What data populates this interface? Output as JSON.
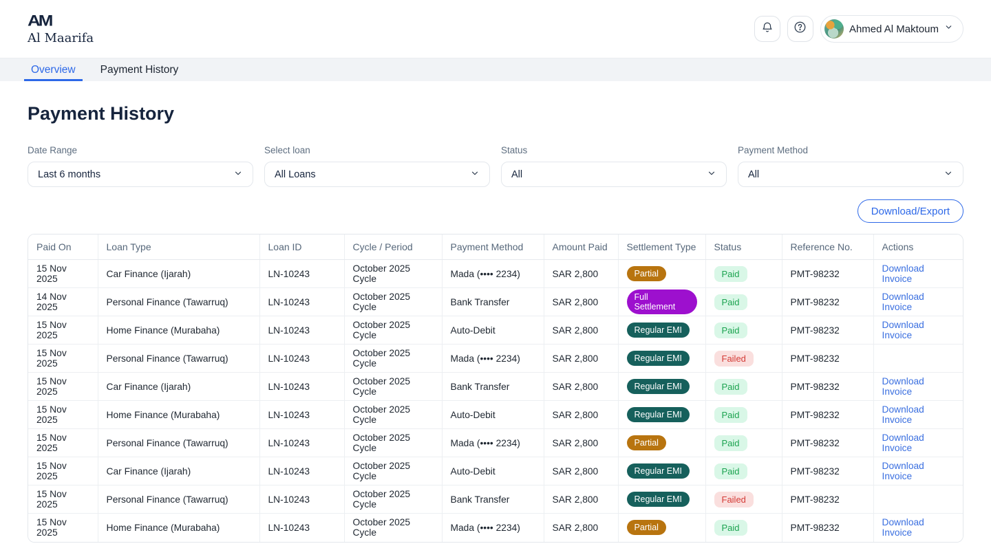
{
  "brand": {
    "monogram": "AM",
    "name": "Al Maarifa"
  },
  "header": {
    "user_name": "Ahmed Al Maktoum",
    "icons": {
      "notifications": "bell-icon",
      "help": "question-icon",
      "user_menu": "chevron-down-icon"
    }
  },
  "tabs": [
    {
      "label": "Overview",
      "active": true
    },
    {
      "label": "Payment History",
      "active": false
    }
  ],
  "page": {
    "title": "Payment History"
  },
  "filters": [
    {
      "label": "Date Range",
      "value": "Last 6 months"
    },
    {
      "label": "Select loan",
      "value": "All Loans"
    },
    {
      "label": "Status",
      "value": "All"
    },
    {
      "label": "Payment Method",
      "value": "All"
    }
  ],
  "export_button": "Download/Export",
  "table": {
    "columns": [
      "Paid On",
      "Loan Type",
      "Loan ID",
      "Cycle / Period",
      "Payment Method",
      "Amount Paid",
      "Settlement Type",
      "Status",
      "Reference No.",
      "Actions"
    ],
    "rows": [
      {
        "paid_on": "15 Nov 2025",
        "loan_type": "Car Finance (Ijarah)",
        "loan_id": "LN-10243",
        "cycle": "October 2025 Cycle",
        "method": "Mada (•••• 2234)",
        "amount": "SAR 2,800",
        "settlement": "Partial",
        "status": "Paid",
        "reference": "PMT-98232",
        "action": "Download Invoice"
      },
      {
        "paid_on": "14 Nov 2025",
        "loan_type": "Personal Finance (Tawarruq)",
        "loan_id": "LN-10243",
        "cycle": "October 2025 Cycle",
        "method": "Bank Transfer",
        "amount": "SAR 2,800",
        "settlement": "Full Settlement",
        "status": "Paid",
        "reference": "PMT-98232",
        "action": "Download Invoice"
      },
      {
        "paid_on": "15 Nov 2025",
        "loan_type": "Home Finance (Murabaha)",
        "loan_id": "LN-10243",
        "cycle": "October 2025 Cycle",
        "method": "Auto-Debit",
        "amount": "SAR 2,800",
        "settlement": "Regular EMI",
        "status": "Paid",
        "reference": "PMT-98232",
        "action": "Download Invoice"
      },
      {
        "paid_on": "15 Nov 2025",
        "loan_type": "Personal Finance (Tawarruq)",
        "loan_id": "LN-10243",
        "cycle": "October 2025 Cycle",
        "method": "Mada (•••• 2234)",
        "amount": "SAR 2,800",
        "settlement": "Regular EMI",
        "status": "Failed",
        "reference": "PMT-98232",
        "action": ""
      },
      {
        "paid_on": "15 Nov 2025",
        "loan_type": "Car Finance (Ijarah)",
        "loan_id": "LN-10243",
        "cycle": "October 2025 Cycle",
        "method": "Bank Transfer",
        "amount": "SAR 2,800",
        "settlement": "Regular EMI",
        "status": "Paid",
        "reference": "PMT-98232",
        "action": "Download Invoice"
      },
      {
        "paid_on": "15 Nov 2025",
        "loan_type": "Home Finance (Murabaha)",
        "loan_id": "LN-10243",
        "cycle": "October 2025 Cycle",
        "method": "Auto-Debit",
        "amount": "SAR 2,800",
        "settlement": "Regular EMI",
        "status": "Paid",
        "reference": "PMT-98232",
        "action": "Download Invoice"
      },
      {
        "paid_on": "15 Nov 2025",
        "loan_type": "Personal Finance (Tawarruq)",
        "loan_id": "LN-10243",
        "cycle": "October 2025 Cycle",
        "method": "Mada (•••• 2234)",
        "amount": "SAR 2,800",
        "settlement": "Partial",
        "status": "Paid",
        "reference": "PMT-98232",
        "action": "Download Invoice"
      },
      {
        "paid_on": "15 Nov 2025",
        "loan_type": "Car Finance (Ijarah)",
        "loan_id": "LN-10243",
        "cycle": "October 2025 Cycle",
        "method": "Auto-Debit",
        "amount": "SAR 2,800",
        "settlement": "Regular EMI",
        "status": "Paid",
        "reference": "PMT-98232",
        "action": "Download Invoice"
      },
      {
        "paid_on": "15 Nov 2025",
        "loan_type": "Personal Finance (Tawarruq)",
        "loan_id": "LN-10243",
        "cycle": "October 2025 Cycle",
        "method": "Bank Transfer",
        "amount": "SAR 2,800",
        "settlement": "Regular EMI",
        "status": "Failed",
        "reference": "PMT-98232",
        "action": ""
      },
      {
        "paid_on": "15 Nov 2025",
        "loan_type": "Home Finance (Murabaha)",
        "loan_id": "LN-10243",
        "cycle": "October 2025 Cycle",
        "method": "Mada (•••• 2234)",
        "amount": "SAR 2,800",
        "settlement": "Partial",
        "status": "Paid",
        "reference": "PMT-98232",
        "action": "Download Invoice"
      }
    ]
  },
  "colors": {
    "accent_blue": "#2D68E8",
    "navy_text": "#16243D",
    "partial_badge": "#B8740F",
    "full_settlement_badge": "#9D10CE",
    "regular_emi_badge": "#16605C",
    "paid_bg": "#D9F7E7",
    "paid_text": "#1CA350",
    "failed_bg": "#FADFDE",
    "failed_text": "#D43B36"
  }
}
